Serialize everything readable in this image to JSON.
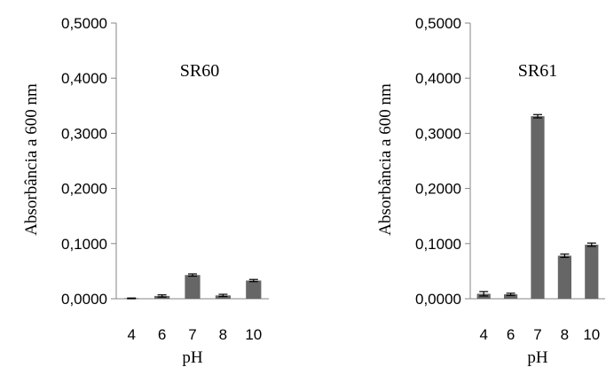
{
  "chart_data": [
    {
      "type": "bar",
      "title": "SR60",
      "xlabel": "pH",
      "ylabel": "Absorbância a 600 nm",
      "categories": [
        "4",
        "6",
        "7",
        "8",
        "10"
      ],
      "values": [
        0.0005,
        0.005,
        0.043,
        0.006,
        0.033
      ],
      "errors": [
        0.0008,
        0.002,
        0.002,
        0.002,
        0.002
      ],
      "ylim": [
        0,
        0.5
      ],
      "yticks": [
        "0,0000",
        "0,1000",
        "0,2000",
        "0,3000",
        "0,4000",
        "0,5000"
      ],
      "grid": false,
      "bar_color": "#666666"
    },
    {
      "type": "bar",
      "title": "SR61",
      "xlabel": "pH",
      "ylabel": "Absorbância a 600 nm",
      "categories": [
        "4",
        "6",
        "7",
        "8",
        "10"
      ],
      "values": [
        0.009,
        0.008,
        0.331,
        0.078,
        0.098
      ],
      "errors": [
        0.004,
        0.002,
        0.003,
        0.003,
        0.003
      ],
      "ylim": [
        0,
        0.5
      ],
      "yticks": [
        "0,0000",
        "0,1000",
        "0,2000",
        "0,3000",
        "0,4000",
        "0,5000"
      ],
      "grid": false,
      "bar_color": "#666666"
    }
  ]
}
